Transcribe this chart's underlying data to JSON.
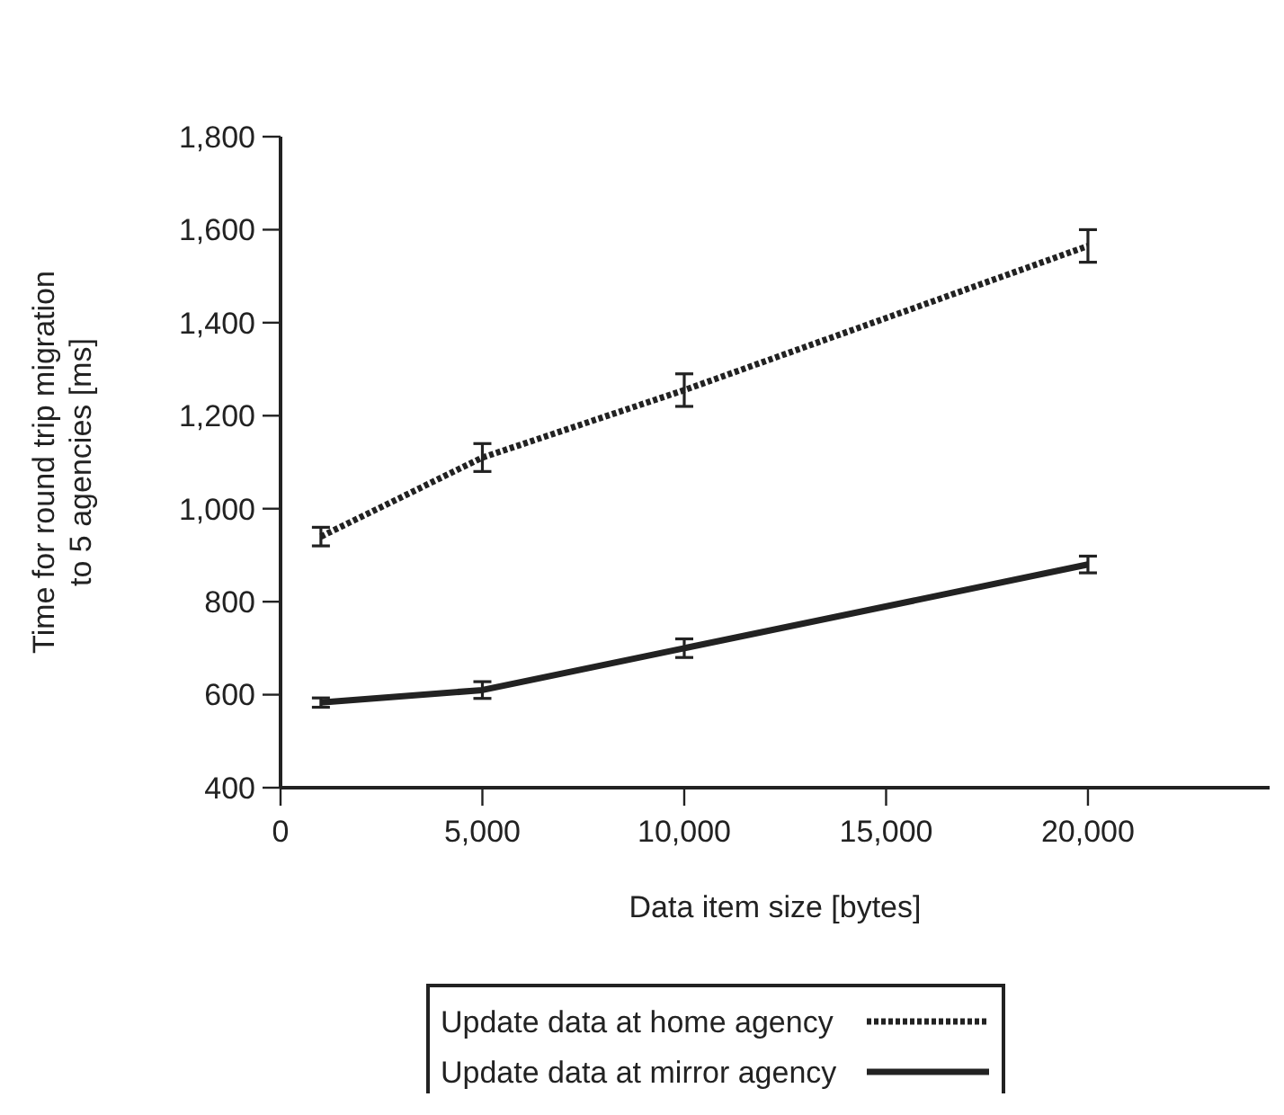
{
  "chart_data": {
    "type": "line",
    "xlabel": "Data item size [bytes]",
    "ylabel": "Time for round trip migration\nto 5 agencies [ms]",
    "x": [
      1000,
      5000,
      10000,
      20000
    ],
    "xlim": [
      0,
      24500
    ],
    "xticks": [
      {
        "value": 0,
        "label": "0"
      },
      {
        "value": 5000,
        "label": "5,000"
      },
      {
        "value": 10000,
        "label": "10,000"
      },
      {
        "value": 15000,
        "label": "15,000"
      },
      {
        "value": 20000,
        "label": "20,000"
      }
    ],
    "ylim": [
      400,
      1800
    ],
    "yticks": [
      {
        "value": 400,
        "label": "400"
      },
      {
        "value": 600,
        "label": "600"
      },
      {
        "value": 800,
        "label": "800"
      },
      {
        "value": 1000,
        "label": "1,000"
      },
      {
        "value": 1200,
        "label": "1,200"
      },
      {
        "value": 1400,
        "label": "1,400"
      },
      {
        "value": 1600,
        "label": "1,600"
      },
      {
        "value": 1800,
        "label": "1,800"
      }
    ],
    "grid": false,
    "legend": "bottom",
    "marker": "none",
    "series": [
      {
        "name": "Update data at home agency",
        "color": "#222222",
        "line_style": "dotted",
        "values": [
          940,
          1110,
          1255,
          1565
        ],
        "errors": [
          20,
          30,
          35,
          35
        ]
      },
      {
        "name": "Update data at mirror agency",
        "color": "#222222",
        "line_style": "solid",
        "values": [
          583,
          610,
          700,
          880
        ],
        "errors": [
          10,
          18,
          20,
          18
        ]
      }
    ]
  }
}
